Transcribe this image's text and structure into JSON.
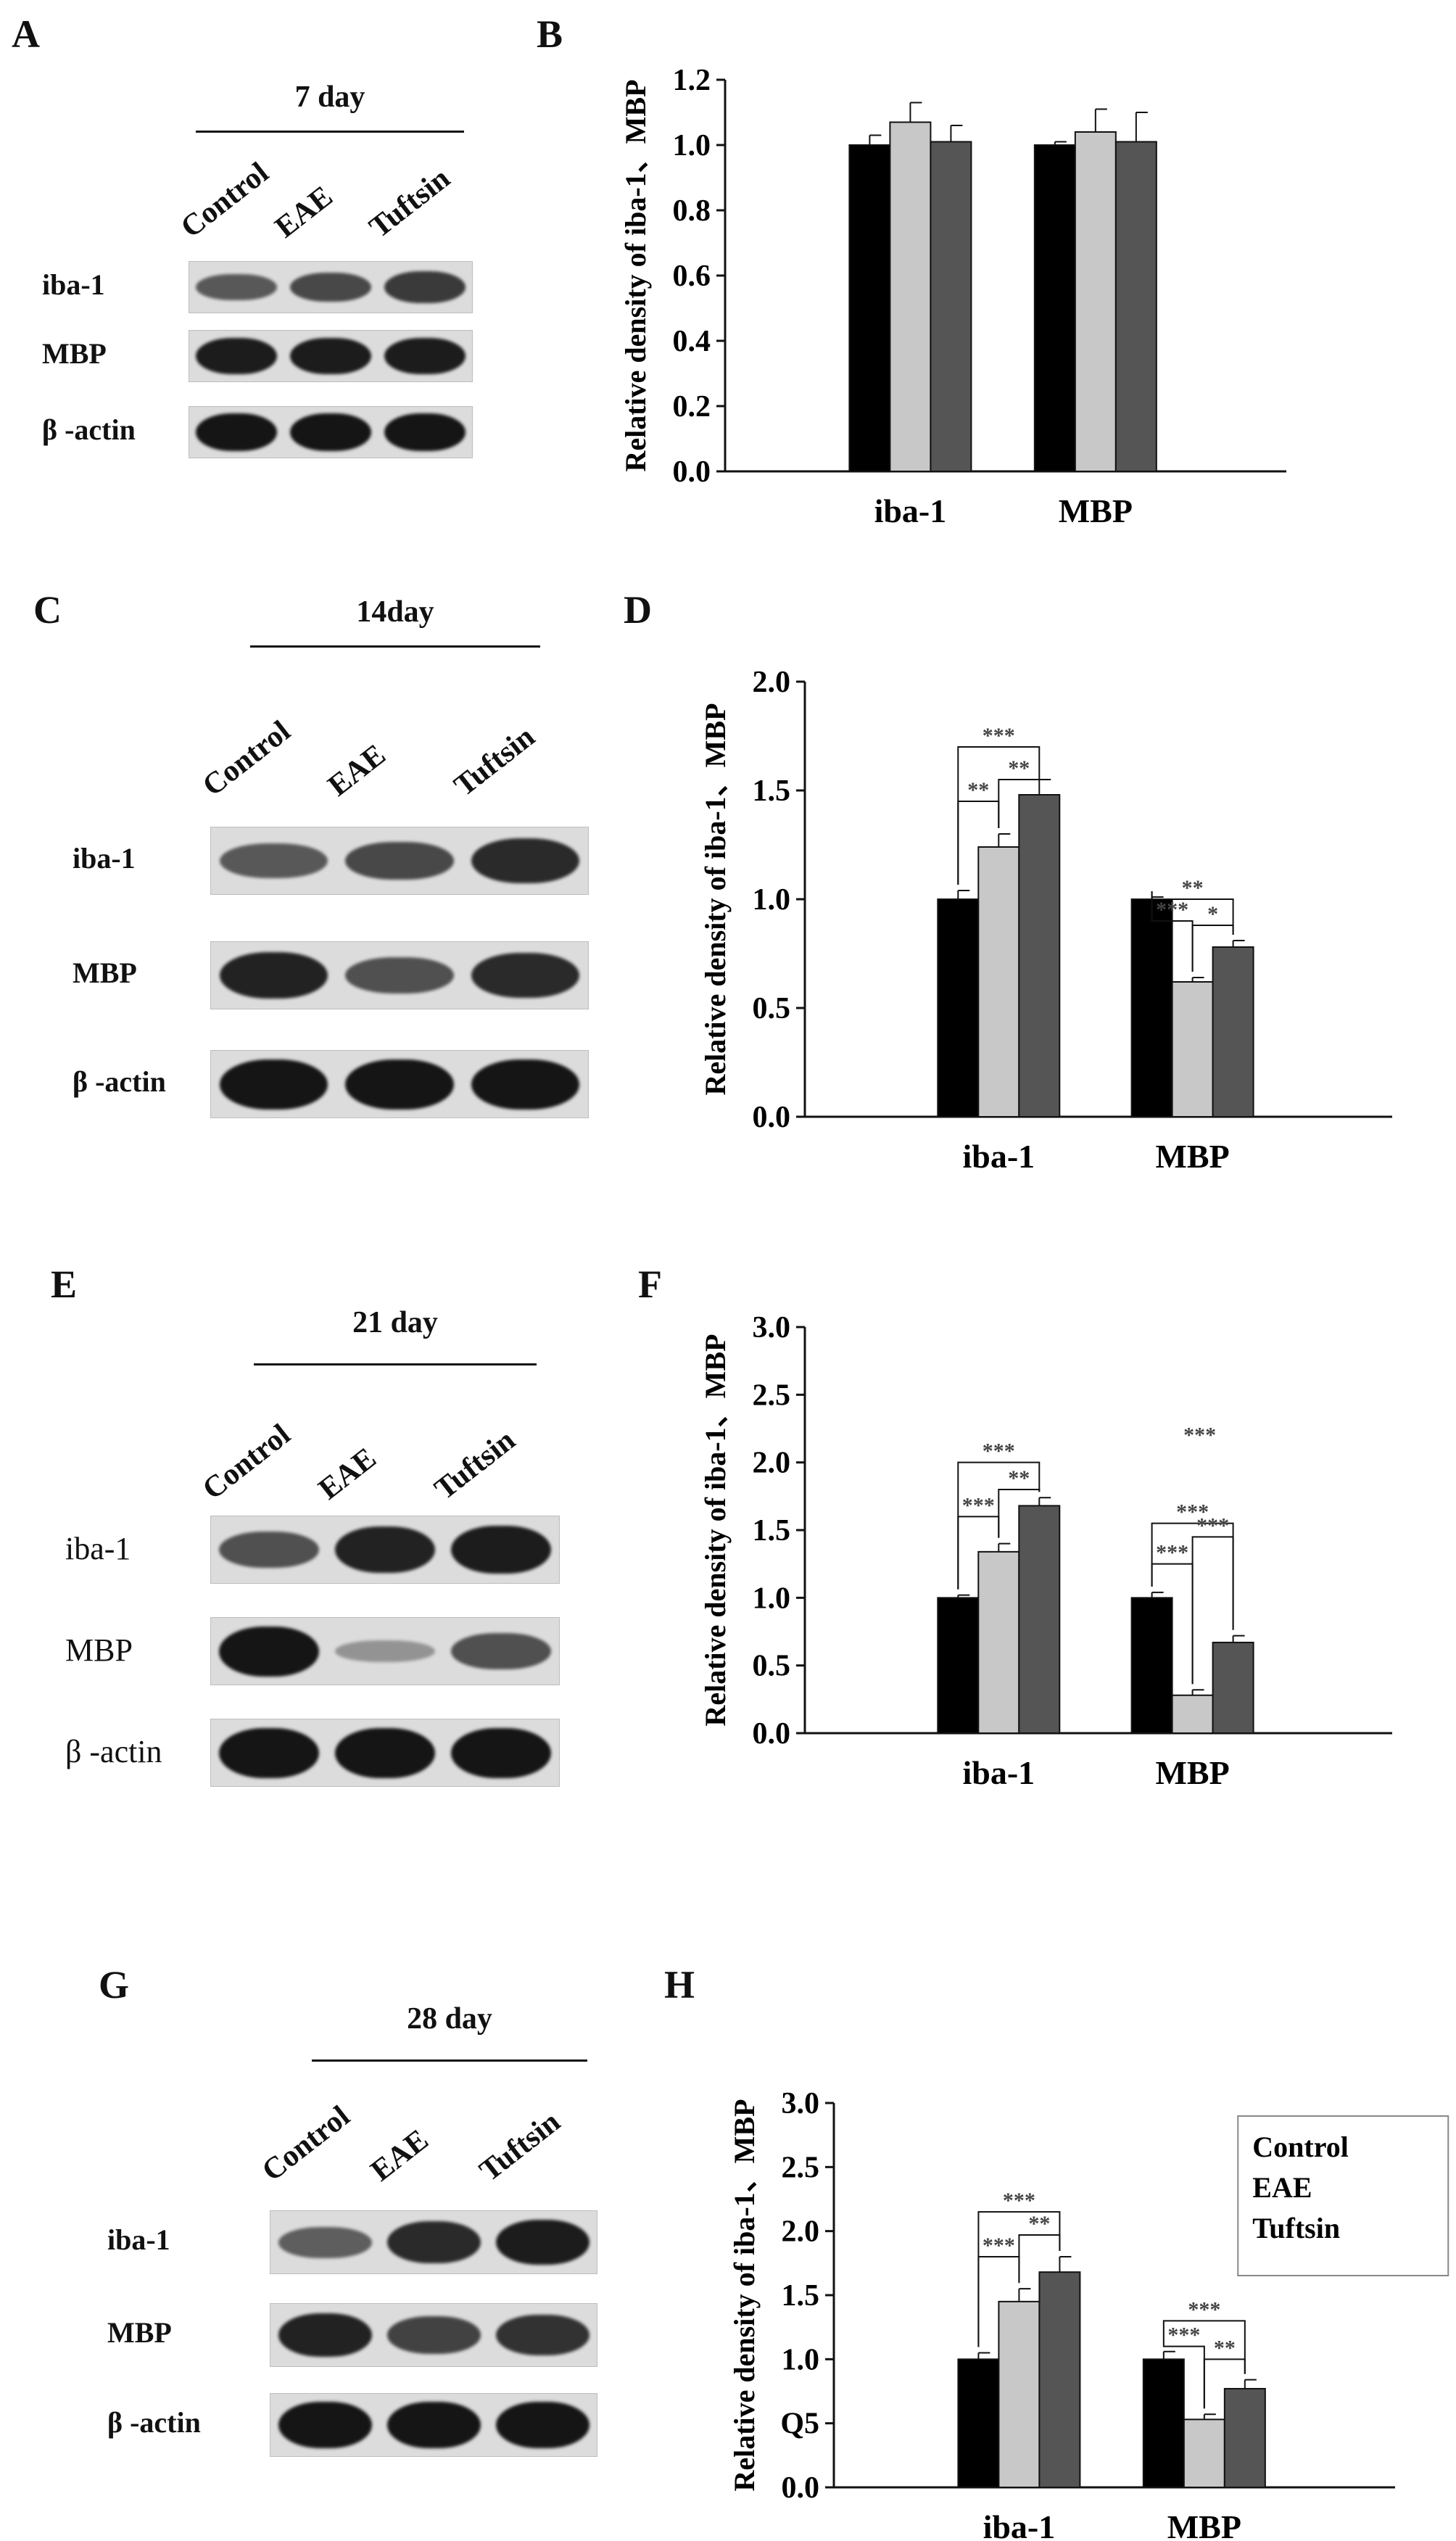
{
  "panels": [
    {
      "letter": "A",
      "type": "blot",
      "day": "7 day",
      "lanes": [
        "Control",
        "EAE",
        "Tuftsin"
      ],
      "rows": [
        "iba-1",
        "MBP",
        "β -actin"
      ]
    },
    {
      "letter": "B",
      "type": "chart"
    },
    {
      "letter": "C",
      "type": "blot",
      "day": "14day",
      "lanes": [
        "Control",
        "EAE",
        "Tuftsin"
      ],
      "rows": [
        "iba-1",
        "MBP",
        "β -actin"
      ]
    },
    {
      "letter": "D",
      "type": "chart"
    },
    {
      "letter": "E",
      "type": "blot",
      "day": "21 day",
      "lanes": [
        "Control",
        "EAE",
        "Tuftsin"
      ],
      "rows": [
        "iba-1",
        "MBP",
        "β -actin"
      ]
    },
    {
      "letter": "F",
      "type": "chart"
    },
    {
      "letter": "G",
      "type": "blot",
      "day": "28 day",
      "lanes": [
        "Control",
        "EAE",
        "Tuftsin"
      ],
      "rows": [
        "iba-1",
        "MBP",
        "β -actin"
      ]
    },
    {
      "letter": "H",
      "type": "chart"
    }
  ],
  "blots": [
    {
      "band_intensity": {
        "iba-1": [
          0.55,
          0.65,
          0.75
        ],
        "MBP": [
          0.95,
          0.95,
          0.95
        ],
        "β -actin": [
          1,
          1,
          1
        ]
      }
    },
    {
      "band_intensity": {
        "iba-1": [
          0.55,
          0.65,
          0.85
        ],
        "MBP": [
          0.9,
          0.6,
          0.85
        ],
        "β -actin": [
          1,
          1,
          1
        ]
      }
    },
    {
      "band_intensity": {
        "iba-1": [
          0.6,
          0.9,
          0.95
        ],
        "MBP": [
          1,
          0.15,
          0.6
        ],
        "β -actin": [
          1,
          1,
          1
        ]
      }
    },
    {
      "band_intensity": {
        "iba-1": [
          0.5,
          0.85,
          0.95
        ],
        "MBP": [
          0.9,
          0.7,
          0.8
        ],
        "β -actin": [
          1,
          1,
          1
        ]
      }
    }
  ],
  "chart_data": [
    {
      "type": "bar",
      "panel": "B",
      "categories": [
        "iba-1",
        "MBP"
      ],
      "series": [
        {
          "name": "Control",
          "values": [
            1.0,
            1.0
          ],
          "errors": [
            0.03,
            0.01
          ],
          "color": "#000000"
        },
        {
          "name": "EAE",
          "values": [
            1.07,
            1.04
          ],
          "errors": [
            0.06,
            0.07
          ],
          "color": "#c8c8c8"
        },
        {
          "name": "Tuftsin",
          "values": [
            1.01,
            1.01
          ],
          "errors": [
            0.05,
            0.09
          ],
          "color": "#555555"
        }
      ],
      "ylabel": "Relative density of iba-1、MBP",
      "ylim": [
        0,
        1.2
      ],
      "yticks": [
        "0.0",
        "0.2",
        "0.4",
        "0.6",
        "0.8",
        "1.0",
        "1.2"
      ],
      "significance": []
    },
    {
      "type": "bar",
      "panel": "D",
      "categories": [
        "iba-1",
        "MBP"
      ],
      "series": [
        {
          "name": "Control",
          "values": [
            1.0,
            1.0
          ],
          "errors": [
            0.04,
            0.01
          ],
          "color": "#000000"
        },
        {
          "name": "EAE",
          "values": [
            1.24,
            0.62
          ],
          "errors": [
            0.06,
            0.02
          ],
          "color": "#c8c8c8"
        },
        {
          "name": "Tuftsin",
          "values": [
            1.48,
            0.78
          ],
          "errors": [
            0.07,
            0.03
          ],
          "color": "#555555"
        }
      ],
      "ylabel": "Relative density of iba-1、MBP",
      "ylim": [
        0,
        2.0
      ],
      "yticks": [
        "0.0",
        "0.5",
        "1.0",
        "1.5",
        "2.0"
      ],
      "significance": [
        {
          "category": 0,
          "from": 0,
          "to": 2,
          "level": 1.7,
          "label": "***"
        },
        {
          "category": 0,
          "from": 0,
          "to": 1,
          "level": 1.45,
          "label": "**"
        },
        {
          "category": 0,
          "from": 1,
          "to": 2,
          "level": 1.55,
          "label": "**"
        },
        {
          "category": 1,
          "from": 0,
          "to": 2,
          "level": 1.0,
          "label": "**"
        },
        {
          "category": 1,
          "from": 0,
          "to": 1,
          "level": 0.9,
          "label": "***"
        },
        {
          "category": 1,
          "from": 1,
          "to": 2,
          "level": 0.88,
          "label": "*"
        }
      ]
    },
    {
      "type": "bar",
      "panel": "F",
      "categories": [
        "iba-1",
        "MBP"
      ],
      "series": [
        {
          "name": "Control",
          "values": [
            1.0,
            1.0
          ],
          "errors": [
            0.02,
            0.04
          ],
          "color": "#000000"
        },
        {
          "name": "EAE",
          "values": [
            1.34,
            0.28
          ],
          "errors": [
            0.06,
            0.04
          ],
          "color": "#c8c8c8"
        },
        {
          "name": "Tuftsin",
          "values": [
            1.68,
            0.67
          ],
          "errors": [
            0.06,
            0.05
          ],
          "color": "#555555"
        }
      ],
      "ylabel": "Relative density of iba-1、MBP",
      "ylim": [
        0,
        3.0
      ],
      "yticks": [
        "0.0",
        "0.5",
        "1.0",
        "1.5",
        "2.0",
        "2.5",
        "3.0"
      ],
      "significance": [
        {
          "category": 0,
          "from": 0,
          "to": 2,
          "level": 2.0,
          "label": "***"
        },
        {
          "category": 0,
          "from": 0,
          "to": 1,
          "level": 1.6,
          "label": "***"
        },
        {
          "category": 0,
          "from": 1,
          "to": 2,
          "level": 1.8,
          "label": "**"
        },
        {
          "category": 1,
          "from": 0,
          "to": 2,
          "level": 1.55,
          "label": "***"
        },
        {
          "category": 1,
          "from": 0,
          "to": 1,
          "level": 1.25,
          "label": "***"
        },
        {
          "category": 1,
          "from": 1,
          "to": 2,
          "level": 1.45,
          "label": "***"
        }
      ],
      "annotations": [
        {
          "category": 1,
          "level": 2.15,
          "label": "***"
        }
      ]
    },
    {
      "type": "bar",
      "panel": "H",
      "categories": [
        "iba-1",
        "MBP"
      ],
      "series": [
        {
          "name": "Control",
          "values": [
            1.0,
            1.0
          ],
          "errors": [
            0.05,
            0.06
          ],
          "color": "#000000"
        },
        {
          "name": "EAE",
          "values": [
            1.45,
            0.53
          ],
          "errors": [
            0.1,
            0.04
          ],
          "color": "#c8c8c8"
        },
        {
          "name": "Tuftsin",
          "values": [
            1.68,
            0.77
          ],
          "errors": [
            0.12,
            0.07
          ],
          "color": "#555555"
        }
      ],
      "ylabel": "Relative density of iba-1、MBP",
      "ylim": [
        0,
        3.0
      ],
      "yticks": [
        "0.0",
        "Q5",
        "1.0",
        "1.5",
        "2.0",
        "2.5",
        "3.0"
      ],
      "legend": {
        "placement": "top-right",
        "entries": [
          "Control",
          "EAE",
          "Tuftsin"
        ]
      },
      "significance": [
        {
          "category": 0,
          "from": 0,
          "to": 2,
          "level": 2.15,
          "label": "***"
        },
        {
          "category": 0,
          "from": 0,
          "to": 1,
          "level": 1.8,
          "label": "***"
        },
        {
          "category": 0,
          "from": 1,
          "to": 2,
          "level": 1.97,
          "label": "**"
        },
        {
          "category": 1,
          "from": 0,
          "to": 2,
          "level": 1.3,
          "label": "***"
        },
        {
          "category": 1,
          "from": 0,
          "to": 1,
          "level": 1.1,
          "label": "***"
        },
        {
          "category": 1,
          "from": 1,
          "to": 2,
          "level": 1.0,
          "label": "**"
        }
      ]
    }
  ]
}
